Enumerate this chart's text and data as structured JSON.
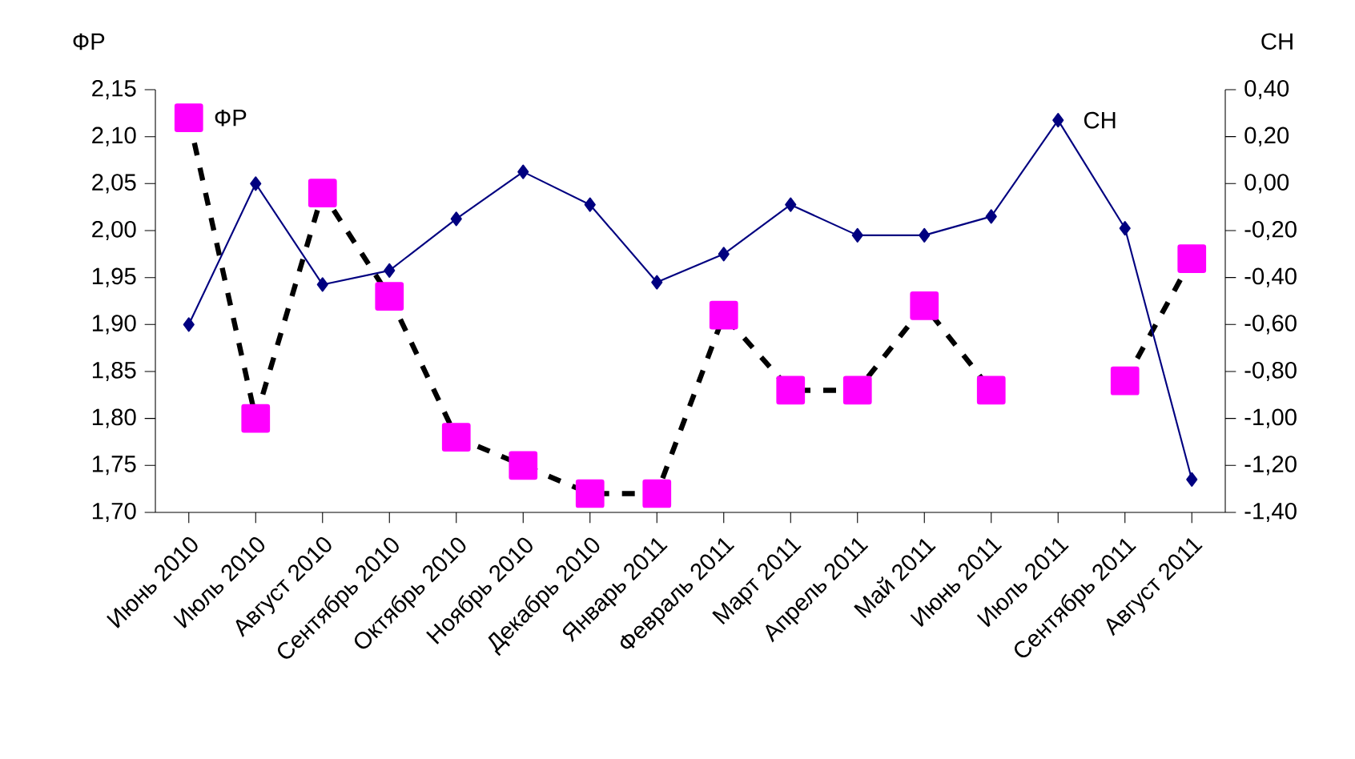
{
  "chart_data": {
    "type": "line",
    "ylabel": "ФР",
    "y2label": "СН",
    "categories": [
      "Июнь 2010",
      "Июль 2010",
      "Август 2010",
      "Сентябрь 2010",
      "Октябрь 2010",
      "Ноябрь 2010",
      "Декабрь 2010",
      "Январь 2011",
      "Февраль 2011",
      "Март 2011",
      "Апрель 2011",
      "Май 2011",
      "Июнь 2011",
      "Июль 2011",
      "Сентябрь 2011",
      "Август 2011"
    ],
    "series": [
      {
        "name": "ФР",
        "color": "#ff00ff",
        "marker": "square",
        "line_style": "dashed",
        "values": [
          2.12,
          1.8,
          2.04,
          1.93,
          1.78,
          1.75,
          1.72,
          1.72,
          1.91,
          1.83,
          1.83,
          1.92,
          1.83,
          null,
          1.84,
          1.97
        ]
      },
      {
        "name": "СН",
        "color": "#000080",
        "marker": "diamond",
        "line_style": "solid",
        "axis": "y2",
        "values": [
          -0.6,
          0.0,
          -0.43,
          -0.37,
          -0.15,
          0.05,
          -0.09,
          -0.42,
          -0.3,
          -0.09,
          -0.22,
          -0.22,
          -0.14,
          0.27,
          -0.19,
          -1.26
        ]
      }
    ],
    "ylim": [
      1.7,
      2.15
    ],
    "yticks": [
      {
        "value": 1.7,
        "label": "1,70"
      },
      {
        "value": 1.75,
        "label": "1,75"
      },
      {
        "value": 1.8,
        "label": "1,80"
      },
      {
        "value": 1.85,
        "label": "1,85"
      },
      {
        "value": 1.9,
        "label": "1,90"
      },
      {
        "value": 1.95,
        "label": "1,95"
      },
      {
        "value": 2.0,
        "label": "2,00"
      },
      {
        "value": 2.05,
        "label": "2,05"
      },
      {
        "value": 2.1,
        "label": "2,10"
      },
      {
        "value": 2.15,
        "label": "2,15"
      }
    ],
    "y2lim": [
      -1.4,
      0.4
    ],
    "y2ticks": [
      {
        "value": -1.4,
        "label": "-1,40"
      },
      {
        "value": -1.2,
        "label": "-1,20"
      },
      {
        "value": -1.0,
        "label": "-1,00"
      },
      {
        "value": -0.8,
        "label": "-0,80"
      },
      {
        "value": -0.6,
        "label": "-0,60"
      },
      {
        "value": -0.4,
        "label": "-0,40"
      },
      {
        "value": -0.2,
        "label": "-0,20"
      },
      {
        "value": 0.0,
        "label": "0,00"
      },
      {
        "value": 0.2,
        "label": "0,20"
      },
      {
        "value": 0.4,
        "label": "0,40"
      }
    ],
    "grid": false
  }
}
